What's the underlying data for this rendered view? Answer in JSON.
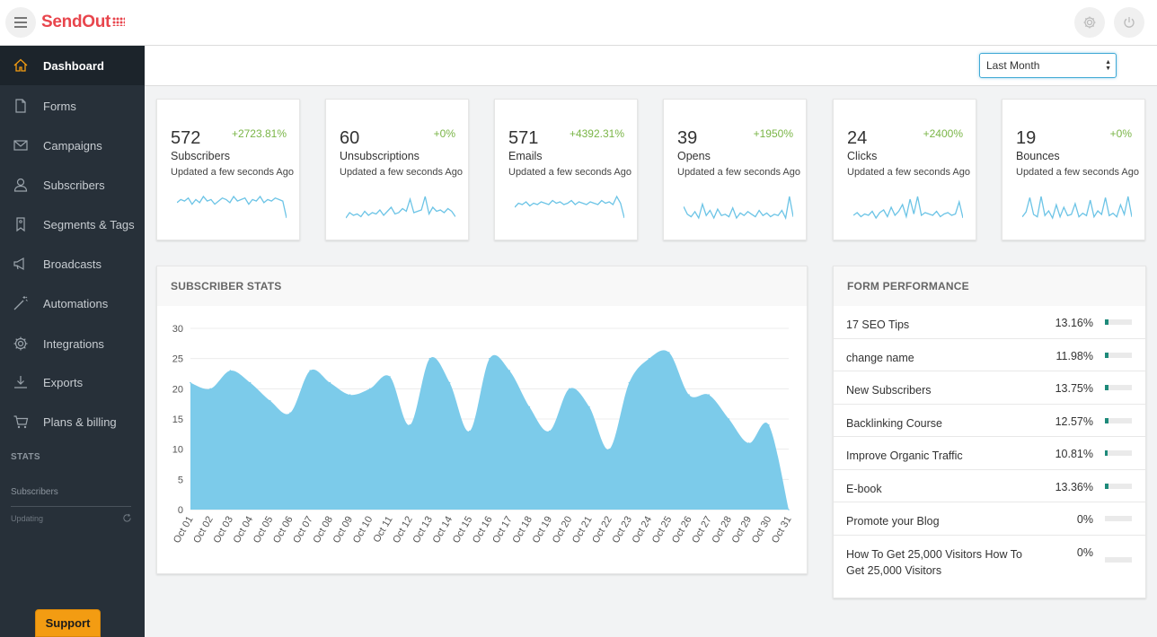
{
  "brand": {
    "name": "SendOut",
    "accent": "#e8454c"
  },
  "sidebar": {
    "items": [
      {
        "label": "Dashboard",
        "icon": "home-icon"
      },
      {
        "label": "Forms",
        "icon": "document-icon"
      },
      {
        "label": "Campaigns",
        "icon": "envelope-icon"
      },
      {
        "label": "Subscribers",
        "icon": "user-icon"
      },
      {
        "label": "Segments & Tags",
        "icon": "tag-icon"
      },
      {
        "label": "Broadcasts",
        "icon": "megaphone-icon"
      },
      {
        "label": "Automations",
        "icon": "magic-wand-icon"
      },
      {
        "label": "Integrations",
        "icon": "gear-icon"
      },
      {
        "label": "Exports",
        "icon": "download-icon"
      },
      {
        "label": "Plans & billing",
        "icon": "cart-icon"
      }
    ],
    "stats_heading": "STATS",
    "stats_sub": "Subscribers",
    "stats_status": "Updating",
    "support_label": "Support"
  },
  "filter": {
    "selected": "Last Month"
  },
  "cards": [
    {
      "value": "572",
      "change": "+2723.81%",
      "label": "Subscribers",
      "updated": "Updated a few seconds Ago",
      "trend": [
        10,
        12,
        11,
        13,
        9,
        12,
        10,
        14,
        11,
        12,
        9,
        11,
        13,
        12,
        10,
        14,
        11,
        12,
        13,
        9,
        12,
        11,
        14,
        10,
        12,
        11,
        13,
        12,
        11,
        0
      ]
    },
    {
      "value": "60",
      "change": "+0%",
      "label": "Unsubscriptions",
      "updated": "Updated a few seconds Ago",
      "trend": [
        4,
        8,
        6,
        7,
        5,
        9,
        6,
        8,
        7,
        10,
        6,
        9,
        12,
        7,
        8,
        11,
        9,
        18,
        8,
        9,
        10,
        20,
        7,
        12,
        9,
        10,
        8,
        11,
        9,
        5
      ]
    },
    {
      "value": "571",
      "change": "+4392.31%",
      "label": "Emails",
      "updated": "Updated a few seconds Ago",
      "trend": [
        10,
        13,
        12,
        14,
        11,
        13,
        12,
        14,
        13,
        12,
        15,
        13,
        14,
        12,
        13,
        15,
        12,
        14,
        13,
        12,
        14,
        13,
        12,
        15,
        13,
        14,
        12,
        18,
        13,
        2
      ]
    },
    {
      "value": "39",
      "change": "+1950%",
      "label": "Opens",
      "updated": "Updated a few seconds Ago",
      "trend": [
        12,
        6,
        4,
        8,
        3,
        14,
        5,
        9,
        3,
        10,
        5,
        6,
        4,
        11,
        3,
        7,
        5,
        8,
        6,
        4,
        9,
        5,
        7,
        4,
        6,
        5,
        9,
        3,
        20,
        4
      ]
    },
    {
      "value": "24",
      "change": "+2400%",
      "label": "Clicks",
      "updated": "Updated a few seconds Ago",
      "trend": [
        6,
        8,
        5,
        7,
        6,
        9,
        4,
        8,
        10,
        5,
        12,
        6,
        9,
        14,
        5,
        18,
        7,
        20,
        6,
        8,
        7,
        6,
        9,
        5,
        7,
        8,
        6,
        7,
        16,
        4
      ]
    },
    {
      "value": "19",
      "change": "+0%",
      "label": "Bounces",
      "updated": "Updated a few seconds Ago",
      "trend": [
        4,
        8,
        20,
        6,
        4,
        21,
        5,
        9,
        3,
        14,
        4,
        12,
        5,
        6,
        15,
        4,
        7,
        5,
        18,
        4,
        9,
        6,
        20,
        5,
        7,
        4,
        14,
        6,
        21,
        4
      ]
    }
  ],
  "subscriber_stats": {
    "title": "SUBSCRIBER STATS",
    "chart_data": {
      "type": "area",
      "title": "SUBSCRIBER STATS",
      "categories": [
        "Oct 01",
        "Oct 02",
        "Oct 03",
        "Oct 04",
        "Oct 05",
        "Oct 06",
        "Oct 07",
        "Oct 08",
        "Oct 09",
        "Oct 10",
        "Oct 11",
        "Oct 12",
        "Oct 13",
        "Oct 14",
        "Oct 15",
        "Oct 16",
        "Oct 17",
        "Oct 18",
        "Oct 19",
        "Oct 20",
        "Oct 21",
        "Oct 22",
        "Oct 23",
        "Oct 24",
        "Oct 25",
        "Oct 26",
        "Oct 27",
        "Oct 28",
        "Oct 29",
        "Oct 30",
        "Oct 31"
      ],
      "values": [
        21,
        20,
        23,
        21,
        18,
        16,
        23,
        21,
        19,
        20,
        22,
        14,
        25,
        21,
        13,
        25,
        23,
        17,
        13,
        20,
        17,
        10,
        21,
        25,
        26,
        19,
        19,
        15,
        11,
        14,
        0
      ],
      "yticks": [
        0,
        5,
        10,
        15,
        20,
        25,
        30
      ],
      "ylim": [
        0,
        30
      ],
      "color": "#7ccbea",
      "grid": true
    }
  },
  "form_performance": {
    "title": "FORM PERFORMANCE",
    "rows": [
      {
        "name": "17 SEO Tips",
        "percent": "13.16%",
        "value": 13.16
      },
      {
        "name": "change name",
        "percent": "11.98%",
        "value": 11.98
      },
      {
        "name": "New Subscribers",
        "percent": "13.75%",
        "value": 13.75
      },
      {
        "name": "Backlinking Course",
        "percent": "12.57%",
        "value": 12.57
      },
      {
        "name": "Improve Organic Traffic",
        "percent": "10.81%",
        "value": 10.81
      },
      {
        "name": "E-book",
        "percent": "13.36%",
        "value": 13.36
      },
      {
        "name": "Promote your Blog",
        "percent": "0%",
        "value": 0
      },
      {
        "name": "How To Get 25,000 Visitors How To Get 25,000 Visitors",
        "percent": "0%",
        "value": 0
      }
    ]
  }
}
